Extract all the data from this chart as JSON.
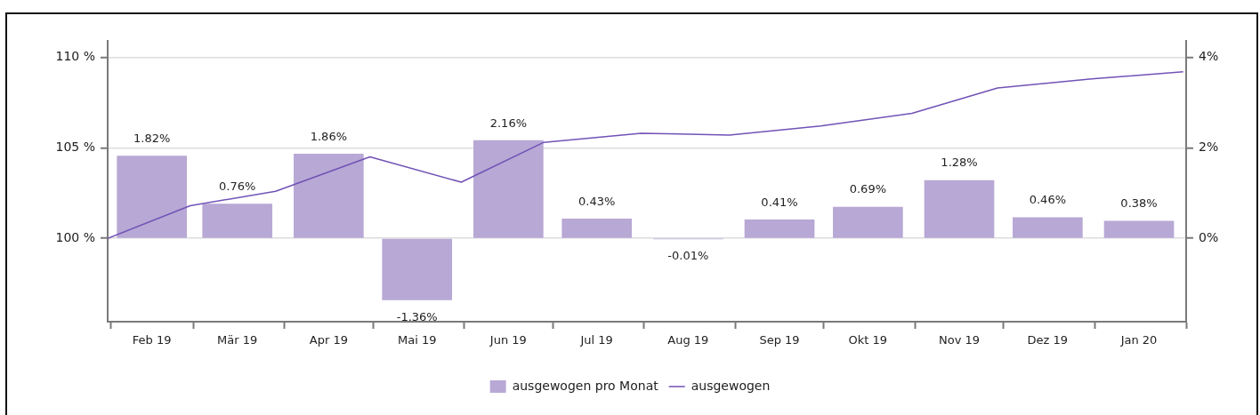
{
  "chart_data": {
    "type": "bar",
    "x": [
      "2019-02-15",
      "2019-03-16",
      "2019-04-16",
      "2019-05-16",
      "2019-06-16",
      "2019-07-16",
      "2019-08-16",
      "2019-09-16",
      "2019-10-16",
      "2019-11-16",
      "2019-12-16",
      "2020-01-16"
    ],
    "xlim": [
      "2019-01-31",
      "2020-02-01"
    ],
    "xticks": [
      {
        "value": "2019-02-01",
        "label": null
      },
      {
        "value": "2019-02-15",
        "label": "Feb 19"
      },
      {
        "value": "2019-03-01",
        "label": null
      },
      {
        "value": "2019-03-16",
        "label": "Mär 19"
      },
      {
        "value": "2019-04-01",
        "label": null
      },
      {
        "value": "2019-04-16",
        "label": "Apr 19"
      },
      {
        "value": "2019-05-01",
        "label": null
      },
      {
        "value": "2019-05-16",
        "label": "Mai 19"
      },
      {
        "value": "2019-06-01",
        "label": null
      },
      {
        "value": "2019-06-16",
        "label": "Jun 19"
      },
      {
        "value": "2019-07-01",
        "label": null
      },
      {
        "value": "2019-07-16",
        "label": "Jul 19"
      },
      {
        "value": "2019-08-01",
        "label": null
      },
      {
        "value": "2019-08-16",
        "label": "Aug 19"
      },
      {
        "value": "2019-09-01",
        "label": null
      },
      {
        "value": "2019-09-16",
        "label": "Sep 19"
      },
      {
        "value": "2019-10-01",
        "label": null
      },
      {
        "value": "2019-10-16",
        "label": "Okt 19"
      },
      {
        "value": "2019-11-01",
        "label": null
      },
      {
        "value": "2019-11-16",
        "label": "Nov 19"
      },
      {
        "value": "2019-12-01",
        "label": null
      },
      {
        "value": "2019-12-16",
        "label": "Dez 19"
      },
      {
        "value": "2020-01-01",
        "label": null
      },
      {
        "value": "2020-01-16",
        "label": "Jan 20"
      },
      {
        "value": "2020-02-01",
        "label": null
      }
    ],
    "series": [
      {
        "name": "ausgewogen pro Monat",
        "axis": "y2",
        "color": "#b8a8d5",
        "values": [
          1.82,
          0.76,
          1.86,
          -1.36,
          2.16,
          0.43,
          -0.01,
          0.41,
          0.69,
          1.28,
          0.46,
          0.38
        ],
        "value_labels": [
          "1.82%",
          "0.76%",
          "1.86%",
          "-1.36%",
          "2.16%",
          "0.43%",
          "-0.01%",
          "0.41%",
          "0.69%",
          "1.28%",
          "0.46%",
          "0.38%"
        ]
      },
      {
        "name": "ausgewogen",
        "type": "line",
        "axis": "y",
        "color": "#7152b6",
        "x": [
          "2019-01-31",
          "2019-02-28",
          "2019-03-29",
          "2019-04-30",
          "2019-05-31",
          "2019-06-28",
          "2019-07-31",
          "2019-08-30",
          "2019-09-30",
          "2019-10-31",
          "2019-11-29",
          "2019-12-31",
          "2020-01-31"
        ],
        "values": [
          100,
          101.8,
          102.6,
          104.5,
          103.1,
          105.3,
          105.8,
          105.7,
          106.2,
          106.9,
          108.3,
          108.8,
          109.2
        ]
      }
    ],
    "ylim": [
      95.4,
      110.9
    ],
    "yticks": [
      {
        "value": 100,
        "label": "100 %"
      },
      {
        "value": 105,
        "label": "105 %"
      },
      {
        "value": 110,
        "label": "110 %"
      }
    ],
    "y2lim": [
      -1.84,
      4.36
    ],
    "y2ticks": [
      {
        "value": 0,
        "label": "0%"
      },
      {
        "value": 2,
        "label": "2%"
      },
      {
        "value": 4,
        "label": "4%"
      }
    ],
    "grid": "y",
    "legend": "bottom"
  }
}
